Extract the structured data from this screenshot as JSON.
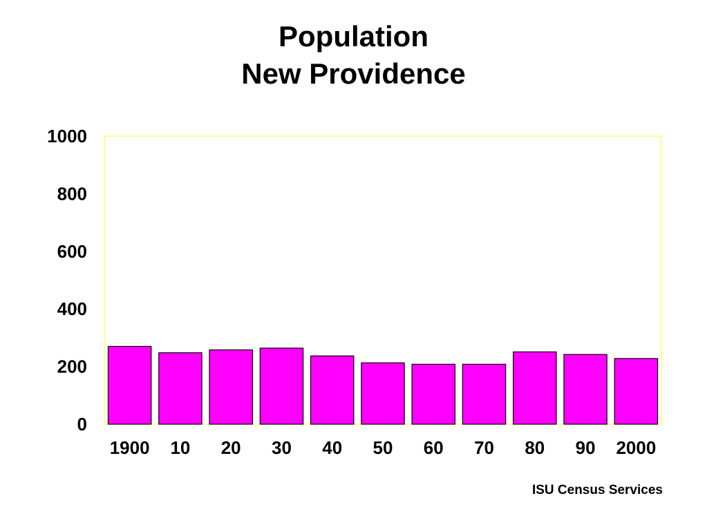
{
  "colors": {
    "bar_fill": "#ff00ff",
    "bar_stroke": "#000000",
    "plot_border": "#ffff66",
    "background": "#ffffff"
  },
  "chart_data": {
    "type": "bar",
    "title": "Population",
    "subtitle": "New Providence",
    "categories": [
      "1900",
      "10",
      "20",
      "30",
      "40",
      "50",
      "60",
      "70",
      "80",
      "90",
      "2000"
    ],
    "values": [
      270,
      248,
      258,
      264,
      237,
      213,
      208,
      208,
      251,
      242,
      228
    ],
    "ylim": [
      0,
      1000
    ],
    "yticks": [
      "0",
      "200",
      "400",
      "600",
      "800",
      "1000"
    ],
    "xlabel": "",
    "ylabel": "",
    "grid": false,
    "legend": "none"
  },
  "footer": {
    "source": "ISU Census Services"
  }
}
